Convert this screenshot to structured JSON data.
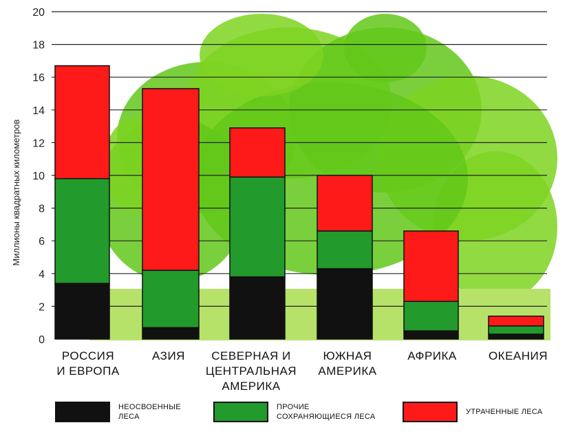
{
  "chart_data": {
    "type": "bar",
    "stacked": true,
    "ylabel": "Миллионы квадратных километров",
    "ylim": [
      0,
      20
    ],
    "yticks": [
      0,
      2,
      4,
      6,
      8,
      10,
      12,
      14,
      16,
      18,
      20
    ],
    "grid": true,
    "categories": [
      "РОССИЯ\nИ ЕВРОПА",
      "АЗИЯ",
      "СЕВЕРНАЯ И\nЦЕНТРАЛЬНАЯ\nАМЕРИКА",
      "ЮЖНАЯ\nАМЕРИКА",
      "АФРИКА",
      "ОКЕАНИЯ"
    ],
    "series": [
      {
        "name": "НЕОСВОЕННЫЕ\nЛЕСА",
        "color": "#111111",
        "values": [
          3.4,
          0.7,
          3.8,
          4.3,
          0.5,
          0.3
        ]
      },
      {
        "name": "ПРОЧИЕ\nСОХРАНЯЮЩИЕСЯ ЛЕСА",
        "color": "#229a2c",
        "values": [
          6.4,
          3.5,
          6.1,
          2.3,
          1.8,
          0.5
        ]
      },
      {
        "name": "УТРАЧЕННЫЕ ЛЕСА",
        "color": "#ff1a1a",
        "values": [
          6.9,
          11.1,
          3.0,
          3.4,
          4.3,
          0.6
        ]
      }
    ],
    "legend_position": "bottom"
  },
  "colors": {
    "tree_light": "#7ed321",
    "tree_mid": "#63c81a",
    "grass": "#b7e26a",
    "grid": "#222222"
  }
}
